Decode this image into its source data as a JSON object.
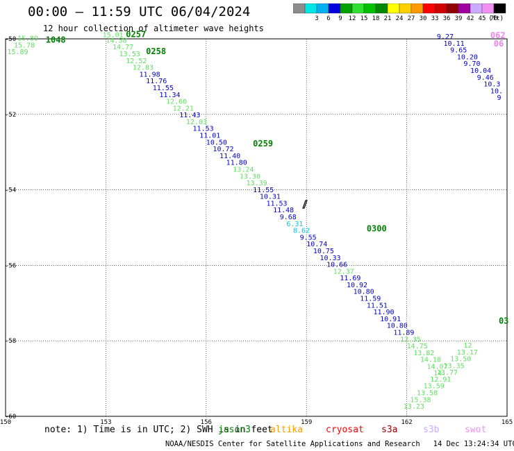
{
  "header": {
    "title": "00:00 – 11:59 UTC 06/04/2024",
    "subtitle": "12 hour collection of altimeter wave heights"
  },
  "color_scale": {
    "unit": "(ft)",
    "bins": [
      {
        "label": "",
        "color": "#8c8c8c"
      },
      {
        "label": "3",
        "color": "#00e5e5"
      },
      {
        "label": "6",
        "color": "#00b0f0"
      },
      {
        "label": "9",
        "color": "#0000e0"
      },
      {
        "label": "12",
        "color": "#00a000"
      },
      {
        "label": "15",
        "color": "#30e030"
      },
      {
        "label": "18",
        "color": "#00c000"
      },
      {
        "label": "21",
        "color": "#008800"
      },
      {
        "label": "24",
        "color": "#ffff00"
      },
      {
        "label": "27",
        "color": "#ffd000"
      },
      {
        "label": "30",
        "color": "#ff9900"
      },
      {
        "label": "33",
        "color": "#ff0000"
      },
      {
        "label": "36",
        "color": "#d00000"
      },
      {
        "label": "39",
        "color": "#900000"
      },
      {
        "label": "42",
        "color": "#a000a0"
      },
      {
        "label": "45",
        "color": "#ccaaff"
      },
      {
        "label": "70",
        "color": "#f090f0"
      },
      {
        "label": "",
        "color": "#000000"
      }
    ]
  },
  "chart_data": {
    "type": "scatter",
    "title": "00:00 – 11:59 UTC 06/04/2024",
    "subtitle": "12 hour collection of altimeter wave heights",
    "xlim": [
      150,
      165
    ],
    "ylim": [
      -60,
      -50
    ],
    "x_ticks": [
      "150",
      "153",
      "156",
      "159",
      "162",
      "165"
    ],
    "y_ticks": [
      "-50",
      "-52",
      "-54",
      "-56",
      "-58",
      "-60"
    ],
    "grid": true,
    "colors": {
      "blue": "#0000cc",
      "light_green": "#5fe05f",
      "dark_green": "#008000",
      "cyan": "#00c8e8",
      "pink": "#ee82ee"
    },
    "pass_labels": [
      {
        "text": "1048",
        "x": 151.2,
        "y": -50.1,
        "color": "dark_green"
      },
      {
        "text": "0257",
        "x": 153.6,
        "y": -49.95,
        "color": "dark_green"
      },
      {
        "text": "0258",
        "x": 154.2,
        "y": -50.4,
        "color": "dark_green"
      },
      {
        "text": "0259",
        "x": 157.4,
        "y": -52.85,
        "color": "dark_green"
      },
      {
        "text": "0300",
        "x": 160.8,
        "y": -55.1,
        "color": "dark_green"
      },
      {
        "text": "03",
        "x": 164.75,
        "y": -57.55,
        "color": "dark_green"
      },
      {
        "text": "062",
        "x": 164.5,
        "y": -49.98,
        "color": "pink"
      },
      {
        "text": "06",
        "x": 164.6,
        "y": -50.2,
        "color": "pink"
      }
    ],
    "measurements": [
      {
        "v": "15.89",
        "x": 150.35,
        "y": -50.05,
        "color": "light_green"
      },
      {
        "v": "15.78",
        "x": 150.25,
        "y": -50.23,
        "color": "light_green"
      },
      {
        "v": "15.89",
        "x": 150.05,
        "y": -50.4,
        "color": "light_green"
      },
      {
        "v": "15.01",
        "x": 152.9,
        "y": -49.95,
        "color": "light_green"
      },
      {
        "v": "14.58",
        "x": 153.0,
        "y": -50.1,
        "color": "light_green"
      },
      {
        "v": "14.77",
        "x": 153.2,
        "y": -50.28,
        "color": "light_green"
      },
      {
        "v": "13.53",
        "x": 153.4,
        "y": -50.46,
        "color": "light_green"
      },
      {
        "v": "12.52",
        "x": 153.6,
        "y": -50.64,
        "color": "light_green"
      },
      {
        "v": "12.83",
        "x": 153.8,
        "y": -50.82,
        "color": "light_green"
      },
      {
        "v": "11.98",
        "x": 154.0,
        "y": -51.0,
        "color": "blue"
      },
      {
        "v": "11.76",
        "x": 154.2,
        "y": -51.18,
        "color": "blue"
      },
      {
        "v": "11.55",
        "x": 154.4,
        "y": -51.36,
        "color": "blue"
      },
      {
        "v": "11.34",
        "x": 154.6,
        "y": -51.54,
        "color": "blue"
      },
      {
        "v": "12.60",
        "x": 154.8,
        "y": -51.72,
        "color": "light_green"
      },
      {
        "v": "12.21",
        "x": 155.0,
        "y": -51.9,
        "color": "light_green"
      },
      {
        "v": "11.43",
        "x": 155.2,
        "y": -52.08,
        "color": "blue"
      },
      {
        "v": "12.03",
        "x": 155.4,
        "y": -52.26,
        "color": "light_green"
      },
      {
        "v": "11.53",
        "x": 155.6,
        "y": -52.44,
        "color": "blue"
      },
      {
        "v": "11.01",
        "x": 155.8,
        "y": -52.62,
        "color": "blue"
      },
      {
        "v": "10.50",
        "x": 156.0,
        "y": -52.8,
        "color": "blue"
      },
      {
        "v": "10.72",
        "x": 156.2,
        "y": -52.98,
        "color": "blue"
      },
      {
        "v": "11.40",
        "x": 156.4,
        "y": -53.16,
        "color": "blue"
      },
      {
        "v": "11.80",
        "x": 156.6,
        "y": -53.34,
        "color": "blue"
      },
      {
        "v": "13.24",
        "x": 156.8,
        "y": -53.52,
        "color": "light_green"
      },
      {
        "v": "13.30",
        "x": 157.0,
        "y": -53.7,
        "color": "light_green"
      },
      {
        "v": "13.39",
        "x": 157.2,
        "y": -53.88,
        "color": "light_green"
      },
      {
        "v": "11.55",
        "x": 157.4,
        "y": -54.06,
        "color": "blue"
      },
      {
        "v": "10.31",
        "x": 157.6,
        "y": -54.24,
        "color": "blue"
      },
      {
        "v": "11.53",
        "x": 157.8,
        "y": -54.42,
        "color": "blue"
      },
      {
        "v": "11.48",
        "x": 158.0,
        "y": -54.6,
        "color": "blue"
      },
      {
        "v": "9.68",
        "x": 158.2,
        "y": -54.78,
        "color": "blue"
      },
      {
        "v": "6.31",
        "x": 158.4,
        "y": -54.96,
        "color": "cyan"
      },
      {
        "v": "8.62",
        "x": 158.6,
        "y": -55.14,
        "color": "cyan"
      },
      {
        "v": "9.55",
        "x": 158.8,
        "y": -55.32,
        "color": "blue"
      },
      {
        "v": "10.74",
        "x": 159.0,
        "y": -55.5,
        "color": "blue"
      },
      {
        "v": "10.75",
        "x": 159.2,
        "y": -55.68,
        "color": "blue"
      },
      {
        "v": "10.33",
        "x": 159.4,
        "y": -55.86,
        "color": "blue"
      },
      {
        "v": "10.66",
        "x": 159.6,
        "y": -56.04,
        "color": "blue"
      },
      {
        "v": "12.37",
        "x": 159.8,
        "y": -56.22,
        "color": "light_green"
      },
      {
        "v": "11.69",
        "x": 160.0,
        "y": -56.4,
        "color": "blue"
      },
      {
        "v": "10.92",
        "x": 160.2,
        "y": -56.58,
        "color": "blue"
      },
      {
        "v": "10.80",
        "x": 160.4,
        "y": -56.76,
        "color": "blue"
      },
      {
        "v": "11.59",
        "x": 160.6,
        "y": -56.94,
        "color": "blue"
      },
      {
        "v": "11.51",
        "x": 160.8,
        "y": -57.12,
        "color": "blue"
      },
      {
        "v": "11.90",
        "x": 161.0,
        "y": -57.3,
        "color": "blue"
      },
      {
        "v": "10.91",
        "x": 161.2,
        "y": -57.48,
        "color": "blue"
      },
      {
        "v": "10.80",
        "x": 161.4,
        "y": -57.66,
        "color": "blue"
      },
      {
        "v": "11.89",
        "x": 161.6,
        "y": -57.84,
        "color": "blue"
      },
      {
        "v": "12.35",
        "x": 161.8,
        "y": -58.02,
        "color": "light_green"
      },
      {
        "v": "14.75",
        "x": 162.0,
        "y": -58.2,
        "color": "light_green"
      },
      {
        "v": "13.82",
        "x": 162.2,
        "y": -58.38,
        "color": "light_green"
      },
      {
        "v": "14.18",
        "x": 162.4,
        "y": -58.56,
        "color": "light_green"
      },
      {
        "v": "14.07",
        "x": 162.6,
        "y": -58.74,
        "color": "light_green"
      },
      {
        "v": "14.",
        "x": 162.8,
        "y": -58.92,
        "color": "light_green"
      },
      {
        "v": "9.27",
        "x": 162.9,
        "y": -50.0,
        "color": "blue"
      },
      {
        "v": "10.11",
        "x": 163.1,
        "y": -50.18,
        "color": "blue"
      },
      {
        "v": "9.65",
        "x": 163.3,
        "y": -50.36,
        "color": "blue"
      },
      {
        "v": "10.20",
        "x": 163.5,
        "y": -50.54,
        "color": "blue"
      },
      {
        "v": "9.70",
        "x": 163.7,
        "y": -50.72,
        "color": "blue"
      },
      {
        "v": "10.04",
        "x": 163.9,
        "y": -50.9,
        "color": "blue"
      },
      {
        "v": "9.46",
        "x": 164.1,
        "y": -51.08,
        "color": "blue"
      },
      {
        "v": "10.3",
        "x": 164.3,
        "y": -51.26,
        "color": "blue"
      },
      {
        "v": "10.",
        "x": 164.5,
        "y": -51.44,
        "color": "blue"
      },
      {
        "v": "9",
        "x": 164.7,
        "y": -51.62,
        "color": "blue"
      },
      {
        "v": "13.23",
        "x": 161.9,
        "y": -59.8,
        "color": "light_green"
      },
      {
        "v": "15.38",
        "x": 162.1,
        "y": -59.62,
        "color": "light_green"
      },
      {
        "v": "13.58",
        "x": 162.3,
        "y": -59.44,
        "color": "light_green"
      },
      {
        "v": "13.59",
        "x": 162.5,
        "y": -59.26,
        "color": "light_green"
      },
      {
        "v": "12.91",
        "x": 162.7,
        "y": -59.08,
        "color": "light_green"
      },
      {
        "v": "13.77",
        "x": 162.9,
        "y": -58.9,
        "color": "light_green"
      },
      {
        "v": "13.35",
        "x": 163.1,
        "y": -58.72,
        "color": "light_green"
      },
      {
        "v": "13.50",
        "x": 163.3,
        "y": -58.54,
        "color": "light_green"
      },
      {
        "v": "13.17",
        "x": 163.5,
        "y": -58.36,
        "color": "light_green"
      },
      {
        "v": "12",
        "x": 163.7,
        "y": -58.18,
        "color": "light_green"
      }
    ]
  },
  "note": {
    "prefix": "note: 1) Time is in UTC; 2) SWH is in feet",
    "sat_jason3": {
      "label": "jason3",
      "color": "#008000"
    },
    "sat_altika": {
      "label": "altika",
      "color": "#ff9900"
    },
    "sat_cryosat": {
      "label": "cryosat",
      "color": "#ff0000"
    },
    "sat_s3a": {
      "label": "s3a",
      "color": "#900000"
    },
    "sat_s3b": {
      "label": "s3b",
      "color": "#ccaaff"
    },
    "sat_swot": {
      "label": "swot",
      "color": "#f090f0"
    }
  },
  "footer": {
    "credit": "NOAA/NESDIS Center for Satellite Applications and Research",
    "timestamp": "14 Dec 13:24:34 UTC 2024"
  }
}
